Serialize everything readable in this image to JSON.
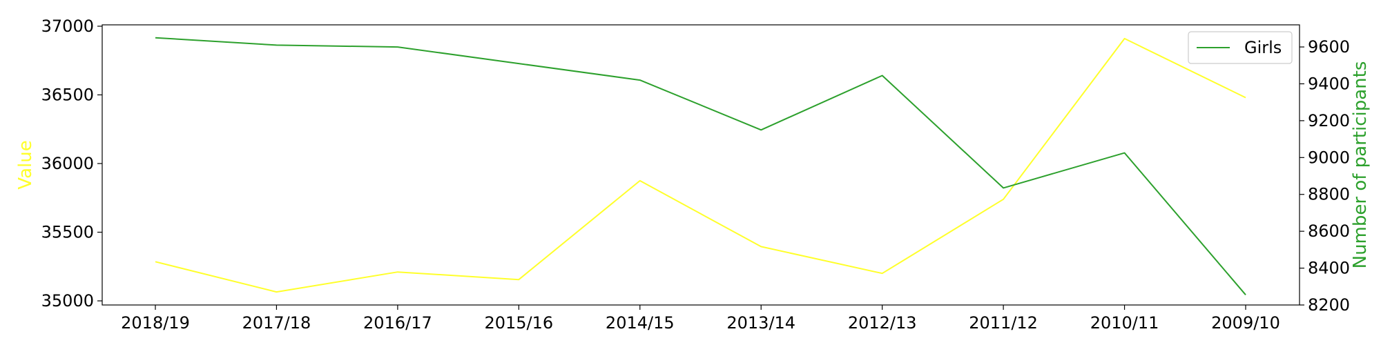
{
  "chart_data": {
    "type": "line",
    "title": "",
    "categories": [
      "2018/19",
      "2017/18",
      "2016/17",
      "2015/16",
      "2014/15",
      "2013/14",
      "2012/13",
      "2011/12",
      "2010/11",
      "2009/10"
    ],
    "left_axis": {
      "label": "Value",
      "color": "#ffff2a",
      "ylim": [
        34970,
        37010
      ],
      "ticks": [
        35000,
        35500,
        36000,
        36500,
        37000
      ]
    },
    "right_axis": {
      "label": "Number of participants",
      "color": "#2ca02c",
      "ylim": [
        8200,
        9720
      ],
      "ticks": [
        8200,
        8400,
        8600,
        8800,
        9000,
        9200,
        9400,
        9600
      ]
    },
    "series": [
      {
        "axis": "left",
        "color": "#ffff2a",
        "values": [
          35285,
          35065,
          35210,
          35155,
          35875,
          35395,
          35200,
          35740,
          36910,
          36480
        ]
      },
      {
        "name": "Girls",
        "axis": "right",
        "color": "#2ca02c",
        "values": [
          9650,
          9610,
          9600,
          9510,
          9420,
          9150,
          9445,
          8835,
          9025,
          8255
        ]
      }
    ],
    "legend": {
      "position": "top-right",
      "entries": [
        "Girls"
      ]
    },
    "grid": false
  }
}
